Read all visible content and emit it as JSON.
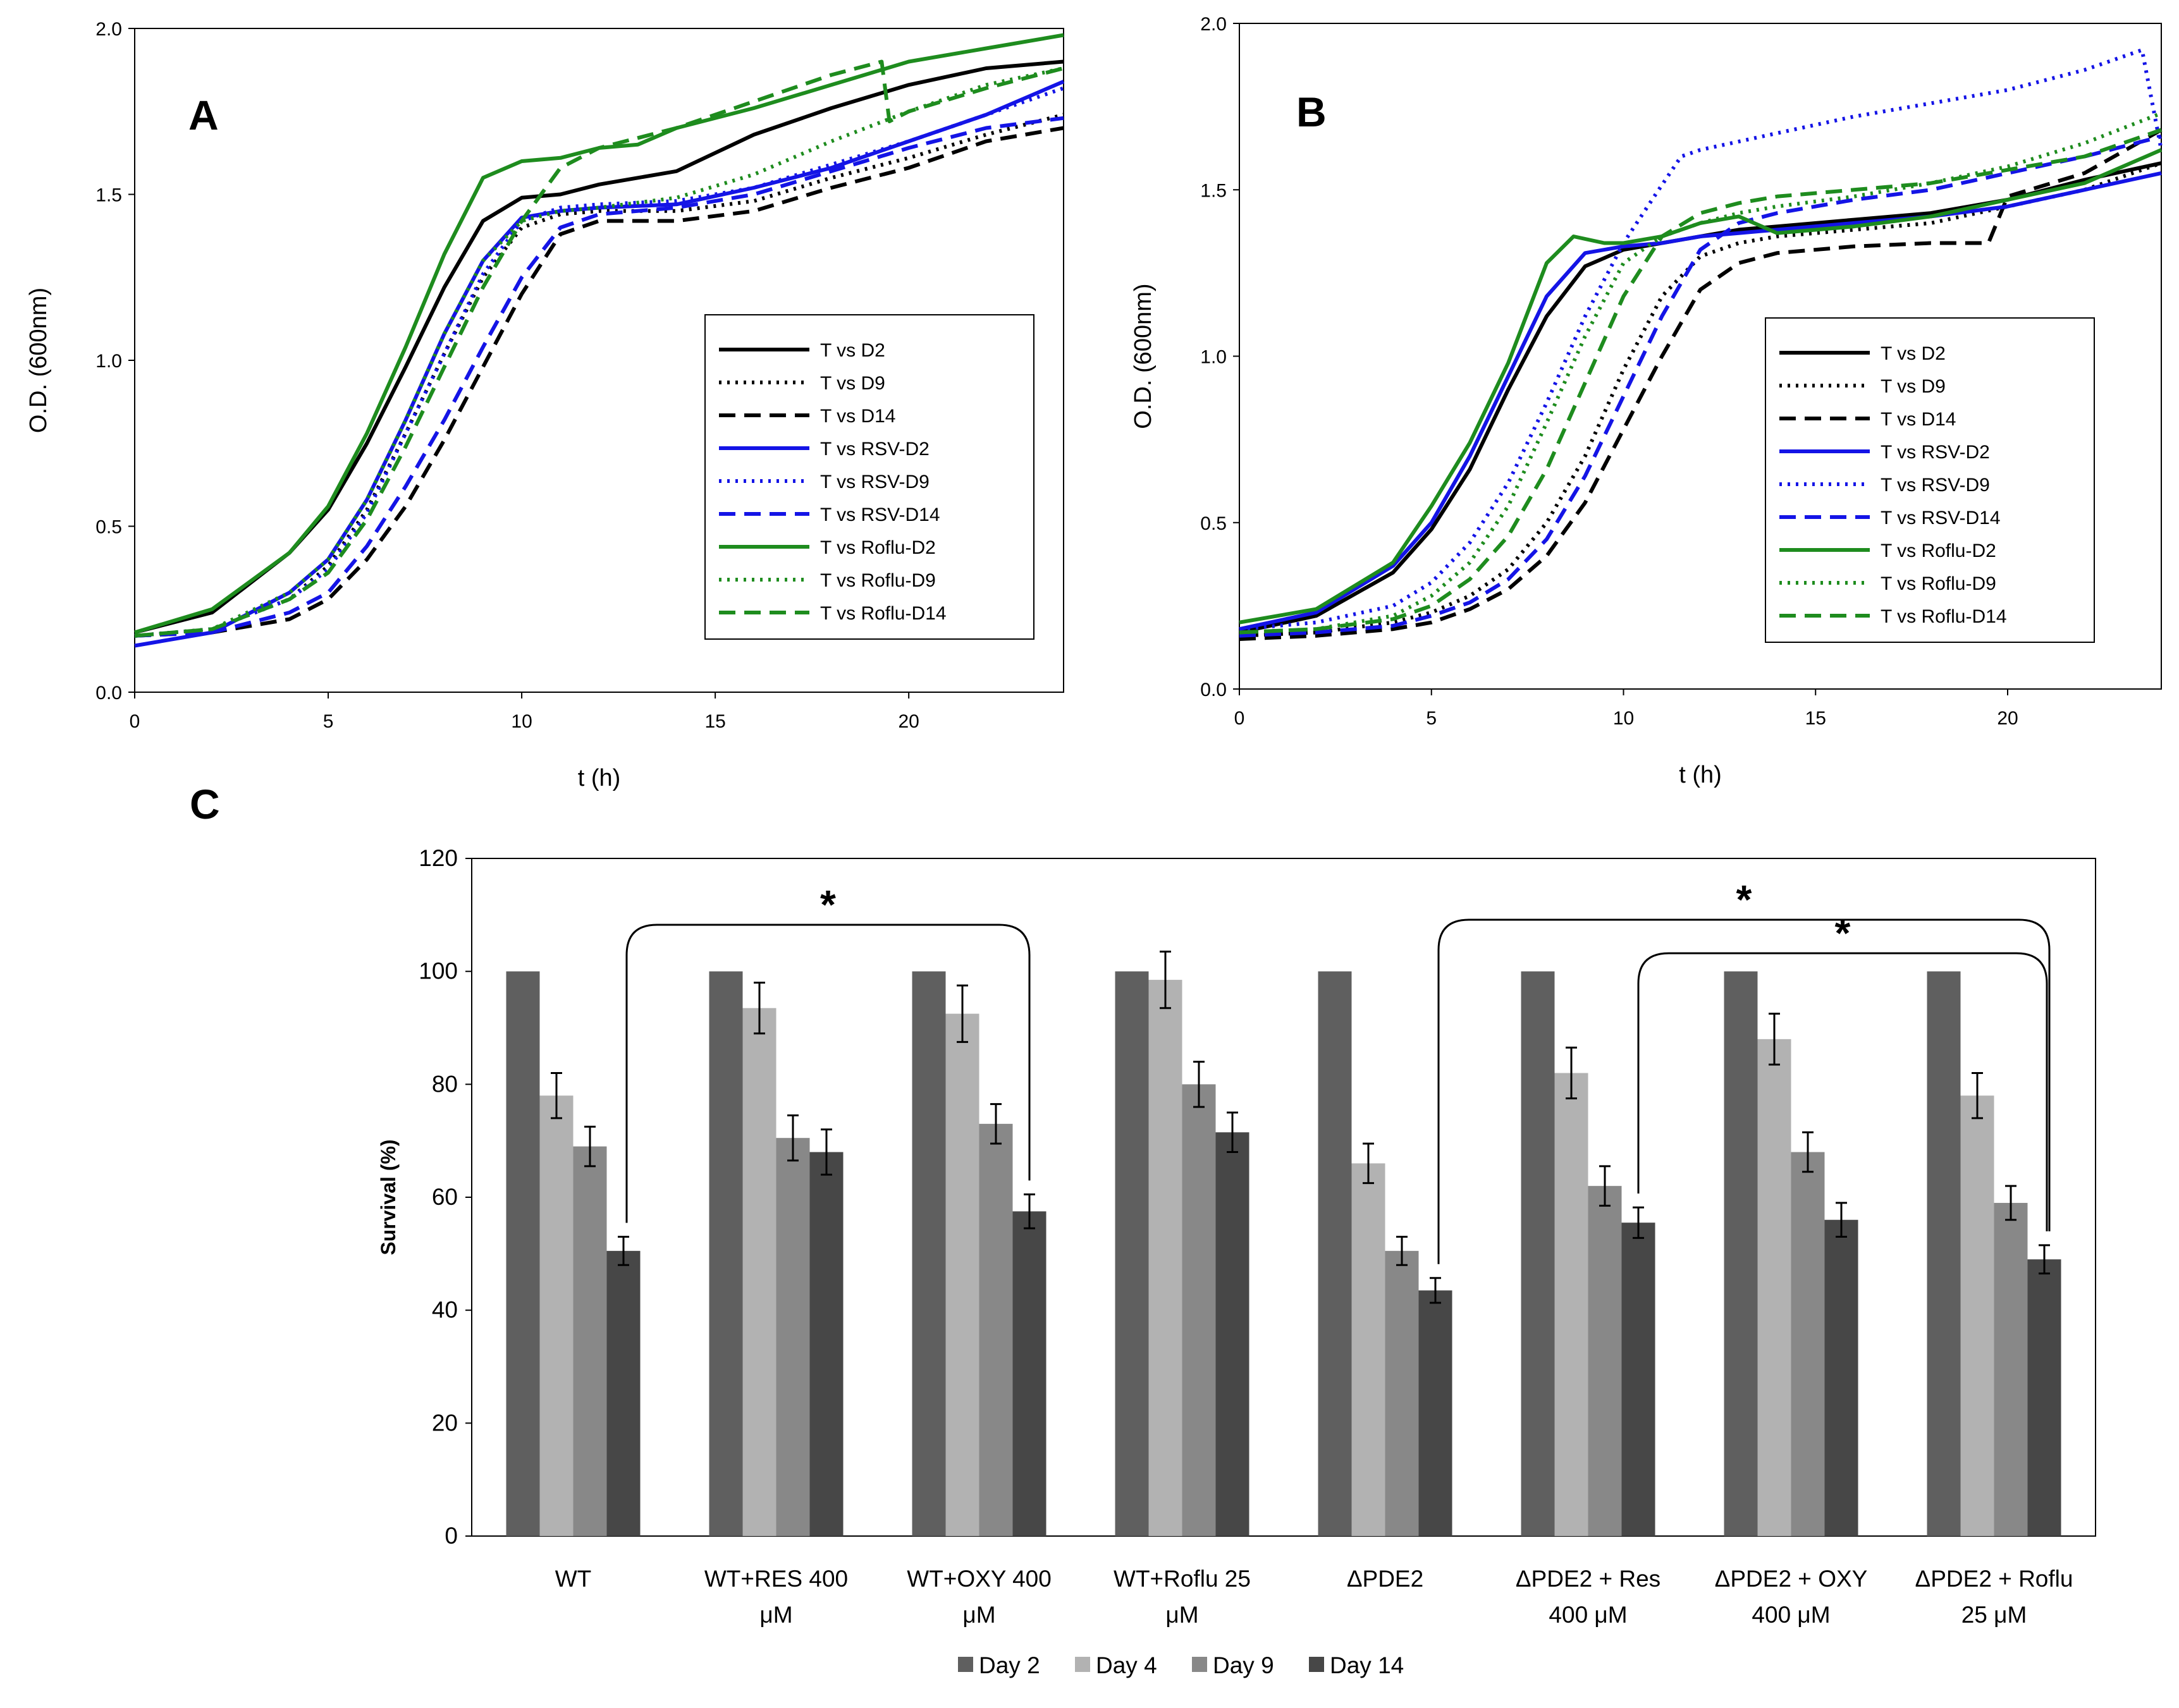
{
  "chart_data": [
    {
      "panel": "A",
      "type": "line",
      "title": "",
      "xlabel": "t (h)",
      "ylabel": "O.D. (600nm)",
      "xlim": [
        0,
        24
      ],
      "ylim": [
        0,
        2.0
      ],
      "xticks": [
        0,
        5,
        10,
        15,
        20
      ],
      "yticks": [
        0.0,
        0.5,
        1.0,
        1.5,
        2.0
      ],
      "ytick_labels": [
        "0.0",
        "0.5",
        "1.0",
        "1.5",
        "2.0"
      ],
      "legend_position": "center-right",
      "series": [
        {
          "name": "T vs D2",
          "color": "#000000",
          "dash": "solid",
          "x": [
            0,
            2,
            4,
            5,
            6,
            7,
            8,
            9,
            10,
            11,
            12,
            13,
            14,
            16,
            18,
            20,
            22,
            24
          ],
          "y": [
            0.18,
            0.24,
            0.42,
            0.55,
            0.75,
            0.98,
            1.22,
            1.42,
            1.49,
            1.5,
            1.53,
            1.55,
            1.57,
            1.68,
            1.76,
            1.83,
            1.88,
            1.9
          ]
        },
        {
          "name": "T vs D9",
          "color": "#000000",
          "dash": "dot",
          "x": [
            0,
            2,
            4,
            5,
            6,
            7,
            8,
            9,
            10,
            11,
            12,
            14,
            16,
            18,
            20,
            22,
            24
          ],
          "y": [
            0.17,
            0.19,
            0.28,
            0.38,
            0.55,
            0.78,
            1.02,
            1.25,
            1.4,
            1.44,
            1.45,
            1.45,
            1.48,
            1.55,
            1.61,
            1.68,
            1.74
          ]
        },
        {
          "name": "T vs D14",
          "color": "#000000",
          "dash": "dash",
          "x": [
            0,
            2,
            4,
            5,
            6,
            7,
            8,
            9,
            10,
            11,
            12,
            14,
            16,
            18,
            20,
            22,
            24
          ],
          "y": [
            0.17,
            0.18,
            0.22,
            0.28,
            0.4,
            0.56,
            0.76,
            0.98,
            1.2,
            1.38,
            1.42,
            1.42,
            1.45,
            1.52,
            1.58,
            1.66,
            1.7
          ]
        },
        {
          "name": "T vs RSV-D2",
          "color": "#1414E6",
          "dash": "solid",
          "x": [
            0,
            2,
            4,
            5,
            6,
            7,
            8,
            9,
            10,
            11,
            12,
            14,
            16,
            18,
            20,
            22,
            24
          ],
          "y": [
            0.14,
            0.18,
            0.3,
            0.4,
            0.58,
            0.82,
            1.08,
            1.3,
            1.43,
            1.45,
            1.46,
            1.47,
            1.52,
            1.58,
            1.66,
            1.74,
            1.84
          ]
        },
        {
          "name": "T vs RSV-D9",
          "color": "#1414E6",
          "dash": "dot",
          "x": [
            0,
            2,
            4,
            5,
            6,
            7,
            8,
            9,
            10,
            11,
            12,
            14,
            16,
            18,
            20,
            22,
            24
          ],
          "y": [
            0.17,
            0.19,
            0.28,
            0.37,
            0.54,
            0.78,
            1.02,
            1.26,
            1.42,
            1.46,
            1.47,
            1.48,
            1.52,
            1.59,
            1.66,
            1.74,
            1.82
          ]
        },
        {
          "name": "T vs RSV-D14",
          "color": "#1414E6",
          "dash": "dash",
          "x": [
            0,
            2,
            4,
            5,
            6,
            7,
            8,
            9,
            10,
            11,
            12,
            14,
            16,
            18,
            20,
            22,
            24
          ],
          "y": [
            0.17,
            0.18,
            0.24,
            0.3,
            0.44,
            0.62,
            0.82,
            1.04,
            1.25,
            1.4,
            1.44,
            1.46,
            1.5,
            1.57,
            1.64,
            1.7,
            1.73
          ]
        },
        {
          "name": "T vs Roflu-D2",
          "color": "#1E8C1E",
          "dash": "solid",
          "x": [
            0,
            2,
            4,
            5,
            6,
            7,
            8,
            9,
            10,
            11,
            12,
            13,
            14,
            16,
            18,
            20,
            22,
            24
          ],
          "y": [
            0.18,
            0.25,
            0.42,
            0.56,
            0.78,
            1.04,
            1.32,
            1.55,
            1.6,
            1.61,
            1.64,
            1.65,
            1.7,
            1.76,
            1.83,
            1.9,
            1.94,
            1.98
          ]
        },
        {
          "name": "T vs Roflu-D9",
          "color": "#1E8C1E",
          "dash": "dot",
          "x": [
            0,
            2,
            4,
            5,
            6,
            7,
            8,
            9,
            10,
            11,
            12,
            14,
            16,
            18,
            20,
            22,
            24
          ],
          "y": [
            0.17,
            0.19,
            0.3,
            0.4,
            0.58,
            0.82,
            1.08,
            1.3,
            1.42,
            1.45,
            1.46,
            1.49,
            1.56,
            1.66,
            1.75,
            1.83,
            1.88
          ]
        },
        {
          "name": "T vs Roflu-D14",
          "color": "#1E8C1E",
          "dash": "dash",
          "x": [
            0,
            2,
            4,
            5,
            6,
            7,
            8,
            9,
            10,
            11,
            12,
            14,
            16,
            18,
            19.3,
            19.5,
            20,
            22,
            24
          ],
          "y": [
            0.17,
            0.19,
            0.28,
            0.36,
            0.52,
            0.74,
            0.98,
            1.22,
            1.42,
            1.58,
            1.64,
            1.7,
            1.78,
            1.86,
            1.9,
            1.72,
            1.75,
            1.82,
            1.88
          ]
        }
      ]
    },
    {
      "panel": "B",
      "type": "line",
      "title": "",
      "xlabel": "t (h)",
      "ylabel": "O.D. (600nm)",
      "xlim": [
        0,
        24
      ],
      "ylim": [
        0,
        2.0
      ],
      "xticks": [
        0,
        5,
        10,
        15,
        20
      ],
      "yticks": [
        0.0,
        0.5,
        1.0,
        1.5,
        2.0
      ],
      "ytick_labels": [
        "0.0",
        "0.5",
        "1.0",
        "1.5",
        "2.0"
      ],
      "legend_position": "center-right",
      "series": [
        {
          "name": "T vs D2",
          "color": "#000000",
          "dash": "solid",
          "x": [
            0,
            2,
            4,
            5,
            6,
            7,
            8,
            9,
            10,
            11,
            12,
            13,
            14,
            16,
            18,
            20,
            22,
            24
          ],
          "y": [
            0.17,
            0.22,
            0.35,
            0.48,
            0.66,
            0.9,
            1.12,
            1.27,
            1.32,
            1.34,
            1.36,
            1.38,
            1.39,
            1.41,
            1.43,
            1.47,
            1.53,
            1.58
          ]
        },
        {
          "name": "T vs D9",
          "color": "#000000",
          "dash": "dot",
          "x": [
            0,
            2,
            4,
            5,
            6,
            7,
            8,
            9,
            10,
            11,
            12,
            13,
            14,
            16,
            18,
            20,
            22,
            24
          ],
          "y": [
            0.16,
            0.17,
            0.2,
            0.23,
            0.28,
            0.36,
            0.5,
            0.7,
            0.96,
            1.18,
            1.3,
            1.34,
            1.36,
            1.38,
            1.4,
            1.45,
            1.5,
            1.58
          ]
        },
        {
          "name": "T vs D14",
          "color": "#000000",
          "dash": "dash",
          "x": [
            0,
            2,
            4,
            5,
            6,
            7,
            8,
            9,
            10,
            11,
            12,
            13,
            14,
            16,
            18,
            19.5,
            20,
            22,
            24
          ],
          "y": [
            0.15,
            0.16,
            0.18,
            0.2,
            0.24,
            0.3,
            0.4,
            0.56,
            0.78,
            1.0,
            1.2,
            1.28,
            1.31,
            1.33,
            1.34,
            1.34,
            1.48,
            1.55,
            1.68
          ]
        },
        {
          "name": "T vs RSV-D2",
          "color": "#1414E6",
          "dash": "solid",
          "x": [
            0,
            2,
            4,
            5,
            6,
            7,
            8,
            9,
            10,
            11,
            12,
            13,
            14,
            16,
            18,
            20,
            22,
            24
          ],
          "y": [
            0.18,
            0.23,
            0.37,
            0.5,
            0.7,
            0.94,
            1.18,
            1.31,
            1.33,
            1.34,
            1.36,
            1.37,
            1.38,
            1.4,
            1.42,
            1.45,
            1.5,
            1.55
          ]
        },
        {
          "name": "T vs RSV-D9",
          "color": "#1414E6",
          "dash": "dot",
          "x": [
            0,
            2,
            4,
            5,
            6,
            7,
            8,
            9,
            10,
            10.8,
            11.5,
            12,
            14,
            16,
            18,
            20,
            22,
            23.5,
            24
          ],
          "y": [
            0.18,
            0.2,
            0.25,
            0.32,
            0.44,
            0.62,
            0.86,
            1.12,
            1.34,
            1.48,
            1.6,
            1.62,
            1.67,
            1.72,
            1.76,
            1.8,
            1.86,
            1.92,
            1.62
          ]
        },
        {
          "name": "T vs RSV-D14",
          "color": "#1414E6",
          "dash": "dash",
          "x": [
            0,
            2,
            4,
            5,
            6,
            7,
            8,
            9,
            10,
            11,
            12,
            13,
            14,
            16,
            18,
            20,
            22,
            24
          ],
          "y": [
            0.16,
            0.17,
            0.19,
            0.22,
            0.26,
            0.33,
            0.45,
            0.64,
            0.88,
            1.12,
            1.32,
            1.4,
            1.43,
            1.47,
            1.5,
            1.55,
            1.6,
            1.66
          ]
        },
        {
          "name": "T vs Roflu-D2",
          "color": "#1E8C1E",
          "dash": "solid",
          "x": [
            0,
            2,
            4,
            5,
            6,
            7,
            8,
            8.7,
            9.5,
            10,
            11,
            12,
            13,
            14,
            16,
            18,
            20,
            22,
            24
          ],
          "y": [
            0.2,
            0.24,
            0.38,
            0.55,
            0.74,
            0.98,
            1.28,
            1.36,
            1.34,
            1.34,
            1.36,
            1.4,
            1.42,
            1.37,
            1.39,
            1.42,
            1.47,
            1.52,
            1.62
          ]
        },
        {
          "name": "T vs Roflu-D9",
          "color": "#1E8C1E",
          "dash": "dot",
          "x": [
            0,
            2,
            4,
            5,
            6,
            7,
            8,
            9,
            10,
            11,
            12,
            13,
            14,
            16,
            18,
            20,
            22,
            24
          ],
          "y": [
            0.17,
            0.18,
            0.22,
            0.28,
            0.38,
            0.55,
            0.8,
            1.06,
            1.28,
            1.36,
            1.4,
            1.43,
            1.45,
            1.48,
            1.52,
            1.57,
            1.64,
            1.73
          ]
        },
        {
          "name": "T vs Roflu-D14",
          "color": "#1E8C1E",
          "dash": "dash",
          "x": [
            0,
            2,
            4,
            5,
            6,
            7,
            8,
            9,
            10,
            11,
            12,
            13,
            14,
            16,
            18,
            20,
            22,
            24
          ],
          "y": [
            0.17,
            0.18,
            0.21,
            0.25,
            0.33,
            0.46,
            0.66,
            0.92,
            1.18,
            1.36,
            1.43,
            1.46,
            1.48,
            1.5,
            1.52,
            1.56,
            1.6,
            1.68
          ]
        }
      ]
    },
    {
      "panel": "C",
      "type": "bar",
      "title": "",
      "xlabel": "",
      "ylabel": "Survival (%)",
      "ylim": [
        0,
        120
      ],
      "yticks": [
        0,
        20,
        40,
        60,
        80,
        100,
        120
      ],
      "legend_position": "bottom",
      "categories": [
        [
          "WT"
        ],
        [
          "WT+RES 400",
          "μM"
        ],
        [
          "WT+OXY 400",
          "μM"
        ],
        [
          "WT+Roflu 25",
          "μM"
        ],
        [
          "ΔPDE2"
        ],
        [
          "ΔPDE2 + Res",
          "400 μM"
        ],
        [
          "ΔPDE2 + OXY",
          "400 μM"
        ],
        [
          "ΔPDE2 + Roflu",
          "25 μM"
        ]
      ],
      "series": [
        {
          "name": "Day 2",
          "color": "#5F5F5F",
          "values": [
            100,
            100,
            100,
            100,
            100,
            100,
            100,
            100
          ],
          "errors": [
            0,
            0,
            0,
            0,
            0,
            0,
            0,
            0
          ]
        },
        {
          "name": "Day 4",
          "color": "#B2B2B2",
          "values": [
            78,
            93.5,
            92.5,
            98.5,
            66,
            82,
            88,
            78
          ],
          "errors": [
            4,
            4.5,
            5,
            5,
            3.5,
            4.5,
            4.5,
            4
          ]
        },
        {
          "name": "Day 9",
          "color": "#888888",
          "values": [
            69,
            70.5,
            73,
            80,
            50.5,
            62,
            68,
            59
          ],
          "errors": [
            3.5,
            4,
            3.5,
            4,
            2.5,
            3.5,
            3.5,
            3
          ]
        },
        {
          "name": "Day 14",
          "color": "#474747",
          "values": [
            50.5,
            68,
            57.5,
            71.5,
            43.5,
            55.5,
            56,
            49
          ],
          "errors": [
            2.5,
            4,
            3,
            3.5,
            2.2,
            2.7,
            3,
            2.5
          ]
        }
      ],
      "significance": [
        {
          "label": "*",
          "from_group": 0,
          "to_group": 2
        },
        {
          "label": "*",
          "from_group": 4,
          "to_group": 7
        },
        {
          "label": "*",
          "from_group": 5,
          "to_group": 7
        }
      ]
    }
  ],
  "panel_labels": {
    "a": "A",
    "b": "B",
    "c": "C"
  }
}
